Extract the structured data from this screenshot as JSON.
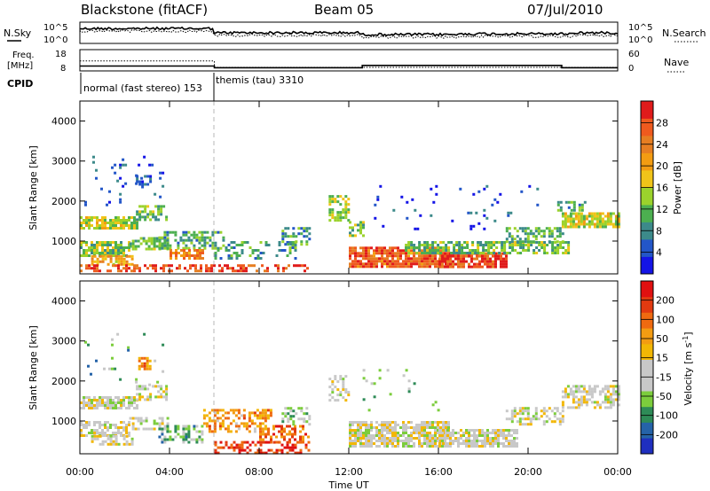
{
  "header": {
    "station": "Blackstone (fitACF)",
    "beam": "Beam 05",
    "date": "07/Jul/2010"
  },
  "chart_data": [
    {
      "id": "nsky-nsearch",
      "type": "line",
      "left_label": "N.Sky",
      "right_label": "N.Search",
      "left_ticks": [
        "10^5",
        "10^0"
      ],
      "right_ticks": [
        "10^5",
        "10^0"
      ]
    },
    {
      "id": "freq-nave",
      "type": "line",
      "left_label_top": "Freq.",
      "left_label_bottom": "[MHz]",
      "right_label": "Nave",
      "left_ticks": [
        "18",
        "8"
      ],
      "right_ticks": [
        "60",
        "0"
      ],
      "series": [
        {
          "name": "Freq.",
          "x": [
            0,
            6,
            12.6,
            21.5,
            24
          ],
          "y": [
            10.3,
            9.5,
            10.6,
            9.5,
            10.3
          ]
        },
        {
          "name": "Nave",
          "x": [
            0,
            6,
            24
          ],
          "y": [
            28,
            10,
            10
          ]
        }
      ]
    },
    {
      "id": "cpid",
      "label": "CPID",
      "segments": [
        {
          "start": 0,
          "end": 6,
          "text": "normal (fast stereo) 153"
        },
        {
          "start": 6,
          "end": 24,
          "text": "themis (tau) 3310"
        }
      ]
    },
    {
      "id": "power",
      "type": "heatmap",
      "ylabel": "Slant Range [km]",
      "xlim": [
        0,
        24
      ],
      "ylim": [
        180,
        4500
      ],
      "yticks": [
        1000,
        2000,
        3000,
        4000
      ],
      "colorbar": {
        "label": "Power [dB]",
        "ticks": [
          "4",
          "8",
          "12",
          "16",
          "20",
          "24",
          "28"
        ],
        "colors": [
          "#1414e6",
          "#2356c8",
          "#3c8a8a",
          "#4caf50",
          "#9bd22c",
          "#f0c419",
          "#f39c12",
          "#e67e22",
          "#ef5a1e",
          "#e01b1b"
        ]
      },
      "regions": [
        {
          "t0": 0.0,
          "t1": 2.5,
          "r0": 1350,
          "r1": 1620,
          "v": 0.48,
          "d": 0.75
        },
        {
          "t0": 2.5,
          "t1": 3.9,
          "r0": 1560,
          "r1": 1900,
          "v": 0.38,
          "d": 0.55
        },
        {
          "t0": 2.5,
          "t1": 3.2,
          "r0": 2350,
          "r1": 2650,
          "v": 0.12,
          "d": 0.45
        },
        {
          "t0": 0.2,
          "t1": 3.8,
          "r0": 1900,
          "r1": 3200,
          "v": 0.12,
          "d": 0.05
        },
        {
          "t0": 0.0,
          "t1": 2.2,
          "r0": 650,
          "r1": 1000,
          "v": 0.42,
          "d": 0.75
        },
        {
          "t0": 0.5,
          "t1": 2.3,
          "r0": 420,
          "r1": 650,
          "v": 0.62,
          "d": 0.7
        },
        {
          "t0": 2.2,
          "t1": 3.9,
          "r0": 820,
          "r1": 1100,
          "v": 0.38,
          "d": 0.6
        },
        {
          "t0": 3.5,
          "t1": 6.4,
          "r0": 800,
          "r1": 1250,
          "v": 0.32,
          "d": 0.55
        },
        {
          "t0": 4.0,
          "t1": 5.5,
          "r0": 550,
          "r1": 800,
          "v": 0.72,
          "d": 0.75
        },
        {
          "t0": 0.0,
          "t1": 10.2,
          "r0": 230,
          "r1": 420,
          "v": 0.85,
          "d": 0.5
        },
        {
          "t0": 6.0,
          "t1": 9.6,
          "r0": 560,
          "r1": 1000,
          "v": 0.3,
          "d": 0.3
        },
        {
          "t0": 9.0,
          "t1": 10.3,
          "r0": 950,
          "r1": 1350,
          "v": 0.3,
          "d": 0.5
        },
        {
          "t0": 11.1,
          "t1": 12.0,
          "r0": 1500,
          "r1": 2150,
          "v": 0.45,
          "d": 0.6
        },
        {
          "t0": 12.0,
          "t1": 12.6,
          "r0": 1150,
          "r1": 1500,
          "v": 0.4,
          "d": 0.55
        },
        {
          "t0": 12.0,
          "t1": 16.5,
          "r0": 380,
          "r1": 860,
          "v": 0.82,
          "d": 0.85
        },
        {
          "t0": 16.0,
          "t1": 19.0,
          "r0": 380,
          "r1": 720,
          "v": 0.88,
          "d": 0.85
        },
        {
          "t0": 14.5,
          "t1": 21.8,
          "r0": 720,
          "r1": 1000,
          "v": 0.38,
          "d": 0.65
        },
        {
          "t0": 19.0,
          "t1": 21.5,
          "r0": 1000,
          "r1": 1350,
          "v": 0.35,
          "d": 0.55
        },
        {
          "t0": 21.5,
          "t1": 24.0,
          "r0": 1330,
          "r1": 1720,
          "v": 0.5,
          "d": 0.8
        },
        {
          "t0": 21.3,
          "t1": 22.5,
          "r0": 1750,
          "r1": 2000,
          "v": 0.3,
          "d": 0.5
        },
        {
          "t0": 13.0,
          "t1": 21.0,
          "r0": 1300,
          "r1": 2400,
          "v": 0.1,
          "d": 0.04
        }
      ]
    },
    {
      "id": "velocity",
      "type": "heatmap",
      "ylabel": "Slant Range [km]",
      "xlabel": "Time UT",
      "xlim": [
        0,
        24
      ],
      "ylim": [
        180,
        4500
      ],
      "yticks": [
        1000,
        2000,
        3000,
        4000
      ],
      "xticks": [
        "00:00",
        "04:00",
        "08:00",
        "12:00",
        "16:00",
        "20:00",
        "00:00"
      ],
      "colorbar": {
        "label_main": "Velocity ",
        "label_units": "m s",
        "label_exp": "-1",
        "ticks": [
          "200",
          "100",
          "50",
          "15",
          "-15",
          "-50",
          "-100",
          "-200"
        ],
        "colors": [
          "#1f2fbf",
          "#2563a8",
          "#2e8b57",
          "#7ccd3c",
          "#c8c8c8",
          "#c8c8c8",
          "#f2b705",
          "#f39c12",
          "#ef6a10",
          "#e23a10",
          "#e01010"
        ]
      },
      "regions": [
        {
          "t0": 0.0,
          "t1": 2.5,
          "r0": 1350,
          "r1": 1620,
          "v": 0.47,
          "d": 0.7
        },
        {
          "t0": 2.5,
          "t1": 3.9,
          "r0": 1560,
          "r1": 1900,
          "v": 0.47,
          "d": 0.55
        },
        {
          "t0": 2.6,
          "t1": 3.1,
          "r0": 2300,
          "r1": 2600,
          "v": 0.72,
          "d": 0.6
        },
        {
          "t0": 0.2,
          "t1": 3.8,
          "r0": 1900,
          "r1": 3200,
          "v": 0.3,
          "d": 0.05
        },
        {
          "t0": 0.0,
          "t1": 2.2,
          "r0": 650,
          "r1": 1000,
          "v": 0.47,
          "d": 0.7
        },
        {
          "t0": 0.5,
          "t1": 2.3,
          "r0": 420,
          "r1": 650,
          "v": 0.47,
          "d": 0.6
        },
        {
          "t0": 2.2,
          "t1": 3.9,
          "r0": 820,
          "r1": 1100,
          "v": 0.47,
          "d": 0.5
        },
        {
          "t0": 3.5,
          "t1": 5.5,
          "r0": 500,
          "r1": 900,
          "v": 0.3,
          "d": 0.55
        },
        {
          "t0": 5.5,
          "t1": 8.5,
          "r0": 750,
          "r1": 1300,
          "v": 0.68,
          "d": 0.5
        },
        {
          "t0": 8.0,
          "t1": 10.2,
          "r0": 500,
          "r1": 900,
          "v": 0.78,
          "d": 0.4
        },
        {
          "t0": 6.0,
          "t1": 10.2,
          "r0": 230,
          "r1": 500,
          "v": 0.88,
          "d": 0.45
        },
        {
          "t0": 9.0,
          "t1": 10.3,
          "r0": 950,
          "r1": 1350,
          "v": 0.35,
          "d": 0.45
        },
        {
          "t0": 11.1,
          "t1": 12.0,
          "r0": 1500,
          "r1": 2150,
          "v": 0.47,
          "d": 0.5
        },
        {
          "t0": 12.0,
          "t1": 16.5,
          "r0": 380,
          "r1": 1000,
          "v": 0.47,
          "d": 0.8
        },
        {
          "t0": 16.0,
          "t1": 19.5,
          "r0": 380,
          "r1": 800,
          "v": 0.47,
          "d": 0.75
        },
        {
          "t0": 19.0,
          "t1": 21.5,
          "r0": 950,
          "r1": 1350,
          "v": 0.47,
          "d": 0.5
        },
        {
          "t0": 21.5,
          "t1": 24.0,
          "r0": 1330,
          "r1": 1900,
          "v": 0.47,
          "d": 0.6
        },
        {
          "t0": 12.5,
          "t1": 16.0,
          "r0": 1300,
          "r1": 2300,
          "v": 0.35,
          "d": 0.04
        }
      ]
    }
  ]
}
